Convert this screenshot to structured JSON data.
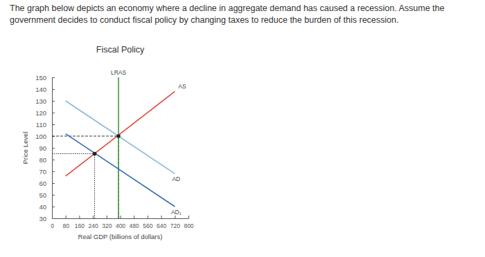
{
  "question": "The graph below depicts an economy where a decline in aggregate demand has caused a recession. Assume the government decides to conduct fiscal policy by changing taxes to reduce the burden of this recession.",
  "chart_data": {
    "type": "line",
    "title": "Fiscal Policy",
    "x_label": "Real GDP (billions of dollars)",
    "y_label": "Price Level",
    "xlim": [
      0,
      800
    ],
    "ylim": [
      30,
      150
    ],
    "xticks": [
      0,
      80,
      160,
      240,
      320,
      400,
      480,
      560,
      640,
      720,
      800
    ],
    "yticks": [
      30,
      40,
      50,
      60,
      70,
      80,
      90,
      100,
      110,
      120,
      130,
      140,
      150
    ],
    "grid": false,
    "series": [
      {
        "name": "LRAS",
        "color": "#3f9b3f",
        "x": [
          390,
          390
        ],
        "values": [
          30,
          150
        ]
      },
      {
        "name": "AS",
        "color": "#e2463b",
        "x": [
          80,
          720
        ],
        "values": [
          66,
          138
        ]
      },
      {
        "name": "AD",
        "color": "#86b8de",
        "x": [
          80,
          720
        ],
        "values": [
          130,
          68
        ]
      },
      {
        "name": "AD₁",
        "color": "#2f6db8",
        "x": [
          80,
          720
        ],
        "values": [
          102,
          40
        ]
      }
    ],
    "equilibria": [
      {
        "x": 390,
        "y": 100,
        "line_style": "dashed"
      },
      {
        "x": 250,
        "y": 85,
        "line_style": "dotted"
      }
    ]
  }
}
